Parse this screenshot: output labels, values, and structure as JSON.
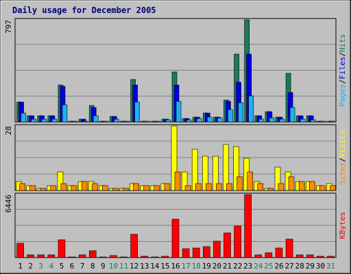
{
  "chart_data": {
    "type": "bar",
    "title": "Daily usage for December 2005",
    "categories": [
      "1",
      "2",
      "3",
      "4",
      "5",
      "6",
      "7",
      "8",
      "9",
      "10",
      "11",
      "12",
      "13",
      "14",
      "15",
      "16",
      "17",
      "18",
      "19",
      "20",
      "21",
      "22",
      "23",
      "24",
      "25",
      "26",
      "27",
      "28",
      "29",
      "30",
      "31"
    ],
    "weekend_days": [
      "3",
      "4",
      "10",
      "11",
      "17",
      "18",
      "24",
      "25",
      "31"
    ],
    "panels": [
      {
        "id": "hits-files-pages",
        "max_label": "797",
        "ylim": [
          0,
          797
        ],
        "legend": [
          "Pages",
          "Files",
          "Hits"
        ],
        "series": [
          {
            "name": "Hits",
            "color": "#1a7a5a",
            "values": [
              155,
              48,
              48,
              48,
              290,
              4,
              20,
              130,
              8,
              42,
              8,
              330,
              5,
              5,
              20,
              390,
              28,
              38,
              68,
              35,
              170,
              530,
              797,
              48,
              80,
              40,
              380,
              48,
              48,
              8,
              8
            ]
          },
          {
            "name": "Files",
            "color": "#0000e0",
            "values": [
              155,
              48,
              48,
              48,
              280,
              4,
              20,
              110,
              8,
              42,
              8,
              290,
              5,
              5,
              20,
              290,
              28,
              38,
              68,
              35,
              160,
              310,
              530,
              48,
              80,
              40,
              230,
              48,
              48,
              8,
              8
            ]
          },
          {
            "name": "Pages",
            "color": "#20b0f0",
            "values": [
              70,
              20,
              20,
              20,
              135,
              4,
              8,
              50,
              4,
              20,
              4,
              155,
              3,
              3,
              15,
              160,
              18,
              25,
              35,
              30,
              95,
              150,
              205,
              20,
              30,
              20,
              115,
              20,
              15,
              5,
              5
            ]
          }
        ]
      },
      {
        "id": "visits-sites",
        "max_label": "28",
        "ylim": [
          0,
          28
        ],
        "legend": [
          "Sites",
          "Visits"
        ],
        "series": [
          {
            "name": "Visits",
            "color": "#ffff00",
            "values": [
              4,
              2,
              1,
              2,
              8,
              2,
              4,
              4,
              2,
              1,
              1,
              3,
              2,
              2,
              3,
              28,
              8,
              18,
              15,
              15,
              20,
              19,
              14,
              4,
              1,
              10,
              8,
              4,
              4,
              2,
              3
            ]
          },
          {
            "name": "Sites",
            "color": "#ff8800",
            "values": [
              3,
              2,
              1,
              2,
              3,
              2,
              4,
              3,
              2,
              1,
              1,
              3,
              2,
              2,
              3,
              8,
              2,
              3,
              3,
              3,
              3,
              6,
              8,
              3,
              1,
              3,
              6,
              4,
              4,
              2,
              2
            ]
          }
        ]
      },
      {
        "id": "kbytes",
        "max_label": "6446",
        "ylim": [
          0,
          6446
        ],
        "legend": [
          "KBytes"
        ],
        "series": [
          {
            "name": "KBytes",
            "color": "#ff0000",
            "values": [
              1500,
              300,
              300,
              300,
              1800,
              50,
              250,
              700,
              50,
              200,
              50,
              2400,
              150,
              100,
              150,
              3900,
              900,
              1000,
              1100,
              1700,
              2500,
              3200,
              6446,
              300,
              500,
              1000,
              1900,
              300,
              300,
              150,
              150
            ]
          }
        ]
      }
    ]
  }
}
